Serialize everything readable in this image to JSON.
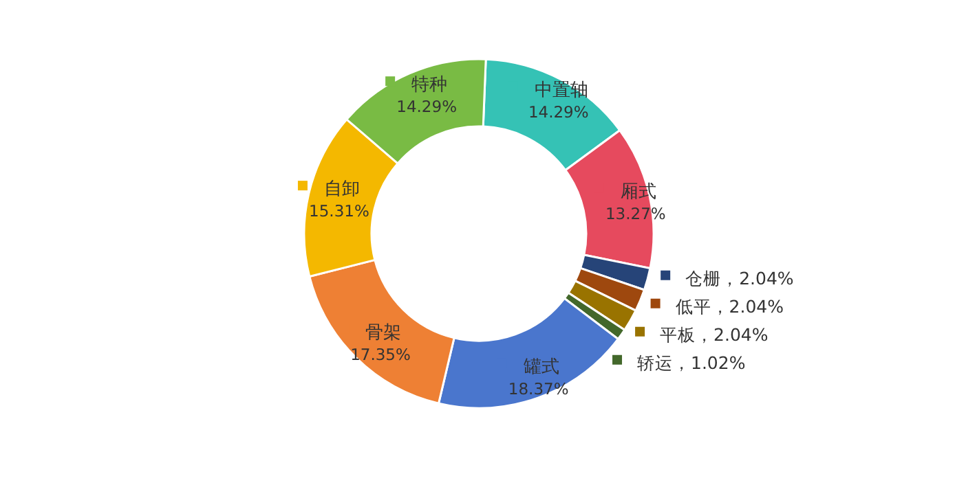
{
  "chart_data": {
    "type": "donut",
    "categories": [
      "中置轴",
      "厢式",
      "仓栅",
      "低平",
      "平板",
      "轿运",
      "罐式",
      "骨架",
      "自卸",
      "特种"
    ],
    "values": [
      14.29,
      13.27,
      2.04,
      2.04,
      2.04,
      1.02,
      18.37,
      17.35,
      15.31,
      14.29
    ],
    "colors": [
      "#35c2b5",
      "#e64a5e",
      "#264478",
      "#9e480e",
      "#997300",
      "#43682b",
      "#4a76cd",
      "#ee8034",
      "#f4b800",
      "#79bb44"
    ],
    "legend": "right",
    "value_labels": [
      "14.29%",
      "13.27%",
      "，2.04%",
      "，2.04%",
      "，2.04%",
      "，1.02%",
      "18.37%",
      "17.35%",
      "15.31%",
      "14.29%"
    ]
  }
}
